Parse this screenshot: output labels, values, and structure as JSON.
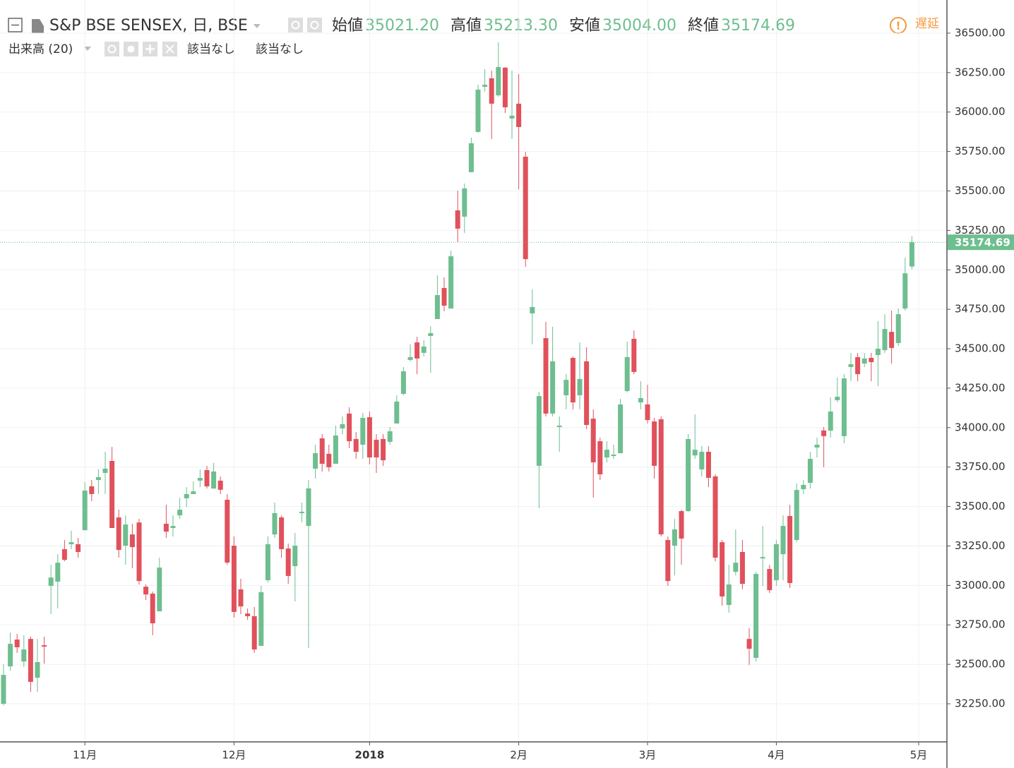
{
  "header": {
    "title": "S&P BSE SENSEX, 日, BSE",
    "ohlc": [
      {
        "label": "始値",
        "value": "35021.20"
      },
      {
        "label": "高値",
        "value": "35213.30"
      },
      {
        "label": "安値",
        "value": "35004.00"
      },
      {
        "label": "終値",
        "value": "35174.69"
      }
    ],
    "volume_label": "出来高 (20)",
    "volume_values": [
      "該当なし",
      "該当なし"
    ],
    "delay": "遅延"
  },
  "chart_data": {
    "type": "candlestick",
    "up_color": "#6ebe8f",
    "down_color": "#e0515b",
    "grid": true,
    "xlim": [
      -0.52,
      139.06
    ],
    "xticks": [
      {
        "value": 12,
        "label": "11月"
      },
      {
        "value": 34,
        "label": "12月"
      },
      {
        "value": 54,
        "label": "2018"
      },
      {
        "value": 76,
        "label": "2月"
      },
      {
        "value": 95,
        "label": "3月"
      },
      {
        "value": 114,
        "label": "4月"
      },
      {
        "value": 135,
        "label": "5月"
      }
    ],
    "ylim": [
      32013,
      36710
    ],
    "yticks": [
      {
        "value": 32250,
        "label": "32250.00"
      },
      {
        "value": 32500,
        "label": "32500.00"
      },
      {
        "value": 32750,
        "label": "32750.00"
      },
      {
        "value": 33000,
        "label": "33000.00"
      },
      {
        "value": 33250,
        "label": "33250.00"
      },
      {
        "value": 33500,
        "label": "33500.00"
      },
      {
        "value": 33750,
        "label": "33750.00"
      },
      {
        "value": 34000,
        "label": "34000.00"
      },
      {
        "value": 34250,
        "label": "34250.00"
      },
      {
        "value": 34500,
        "label": "34500.00"
      },
      {
        "value": 34750,
        "label": "34750.00"
      },
      {
        "value": 35000,
        "label": "35000.00"
      },
      {
        "value": 35250,
        "label": "35250.00"
      },
      {
        "value": 35500,
        "label": "35500.00"
      },
      {
        "value": 35750,
        "label": "35750.00"
      },
      {
        "value": 36000,
        "label": "36000.00"
      },
      {
        "value": 36250,
        "label": "36250.00"
      },
      {
        "value": 36500,
        "label": "36500.00"
      }
    ],
    "open": [
      32250,
      32487,
      32657,
      32518,
      32661,
      32415,
      32621,
      32997,
      33024,
      33230,
      33261,
      33261,
      33350,
      33628,
      33668,
      33713,
      33789,
      33431,
      33252,
      33323,
      33399,
      32992,
      32948,
      32836,
      33391,
      33364,
      33444,
      33552,
      33579,
      33664,
      33731,
      33614,
      33664,
      33543,
      33252,
      32975,
      32822,
      32805,
      32617,
      33033,
      33323,
      33431,
      33234,
      33122,
      33458,
      33377,
      33740,
      33932,
      33834,
      33771,
      33995,
      34089,
      33928,
      33892,
      34066,
      33923,
      33928,
      33910,
      34026,
      34214,
      34429,
      34540,
      34474,
      34581,
      34688,
      34885,
      34755,
      35377,
      35337,
      35619,
      35874,
      36160,
      36214,
      36106,
      36281,
      35959,
      36053,
      35717,
      34724,
      33758,
      34567,
      34089,
      34004,
      34205,
      34442,
      34205,
      34420,
      34057,
      33914,
      33811,
      33820,
      33838,
      34232,
      34563,
      34160,
      34147,
      34039,
      34053,
      33288,
      33252,
      33471,
      33471,
      33824,
      33735,
      33847,
      33691,
      33274,
      32876,
      33086,
      33212,
      32661,
      32541,
      33171,
      33104,
      33033,
      33198,
      33440,
      33288,
      33610,
      33650,
      33874,
      33982,
      33981,
      34174,
      33946,
      34384,
      34447,
      34406,
      34442,
      34460,
      34491,
      34607,
      34536,
      34755,
      35021.2
    ],
    "high": [
      32500,
      32702,
      32693,
      32684,
      32675,
      32661,
      32675,
      33131,
      33198,
      33288,
      33346,
      33301,
      33655,
      33668,
      33735,
      33847,
      33878,
      33480,
      33444,
      33391,
      33422,
      33006,
      32961,
      33176,
      33511,
      33444,
      33556,
      33623,
      33659,
      33735,
      33758,
      33776,
      33690,
      33579,
      33310,
      33042,
      32854,
      32863,
      32997,
      33310,
      33525,
      33444,
      33265,
      33332,
      33525,
      33668,
      33892,
      33959,
      33892,
      34013,
      34071,
      34129,
      33972,
      34093,
      34102,
      33959,
      33959,
      34004,
      34205,
      34384,
      34527,
      34576,
      34554,
      34643,
      34965,
      34952,
      35122,
      35502,
      35547,
      35838,
      36173,
      36272,
      36263,
      36442,
      36285,
      36263,
      36241,
      35748,
      34876,
      34227,
      34670,
      34639,
      34071,
      34339,
      34451,
      34540,
      34509,
      34116,
      33937,
      33914,
      33892,
      34183,
      34545,
      34616,
      34294,
      34272,
      34062,
      34071,
      33310,
      33422,
      33480,
      33959,
      34084,
      33883,
      33883,
      33704,
      33288,
      33131,
      33355,
      33288,
      32729,
      33086,
      33377,
      33131,
      33288,
      33444,
      33511,
      33646,
      33668,
      33847,
      33937,
      34004,
      34192,
      34317,
      34339,
      34473,
      34473,
      34473,
      34473,
      34675,
      34719,
      34742,
      34755,
      35077,
      35213.3
    ],
    "low": [
      32240,
      32460,
      32572,
      32483,
      32326,
      32326,
      32505,
      32818,
      32854,
      33153,
      33230,
      33176,
      33350,
      33534,
      33579,
      33579,
      33364,
      33176,
      33131,
      33109,
      33006,
      32907,
      32684,
      32836,
      33301,
      33310,
      33422,
      33498,
      33579,
      33623,
      33614,
      33614,
      33579,
      33131,
      32796,
      32818,
      32782,
      32572,
      32617,
      33019,
      33301,
      33176,
      33010,
      32899,
      33400,
      32603,
      33677,
      33722,
      33722,
      33771,
      33959,
      33870,
      33803,
      33803,
      33767,
      33713,
      33758,
      33892,
      34026,
      34205,
      34420,
      34339,
      34451,
      34348,
      34688,
      34737,
      34755,
      35176,
      35234,
      35619,
      35869,
      36129,
      35829,
      36097,
      35994,
      35829,
      35511,
      35019,
      34527,
      33489,
      34071,
      34071,
      33847,
      34116,
      34116,
      34116,
      33990,
      33556,
      33668,
      33780,
      33802,
      33838,
      34223,
      34339,
      34116,
      34026,
      33677,
      33310,
      32997,
      33064,
      33131,
      33467,
      33802,
      33690,
      33623,
      33153,
      32872,
      32827,
      33064,
      32975,
      32496,
      32518,
      32997,
      32952,
      32997,
      33033,
      32984,
      33274,
      33579,
      33614,
      33811,
      33749,
      33937,
      34160,
      33901,
      34294,
      34294,
      34384,
      34294,
      34263,
      34473,
      34406,
      34518,
      34742,
      35004
    ],
    "close": [
      32433,
      32630,
      32608,
      32594,
      32389,
      32514,
      32612,
      33050,
      33144,
      33162,
      33274,
      33212,
      33601,
      33579,
      33686,
      33740,
      33364,
      33225,
      33386,
      33243,
      33028,
      32943,
      32760,
      33113,
      33341,
      33377,
      33480,
      33579,
      33596,
      33681,
      33628,
      33722,
      33606,
      33145,
      32832,
      32867,
      32805,
      32594,
      32957,
      33261,
      33458,
      33230,
      33060,
      33252,
      33467,
      33615,
      33838,
      33771,
      33749,
      33950,
      34022,
      33914,
      33847,
      34062,
      33811,
      33811,
      33793,
      33977,
      34165,
      34357,
      34447,
      34438,
      34514,
      34599,
      34840,
      34773,
      35086,
      35261,
      35516,
      35802,
      36142,
      36173,
      36053,
      36285,
      36030,
      35977,
      35905,
      35068,
      34764,
      34200,
      34089,
      34420,
      34013,
      34303,
      34160,
      34308,
      34017,
      33780,
      33704,
      33860,
      33829,
      34147,
      34447,
      34353,
      34187,
      34048,
      33758,
      33324,
      33028,
      33355,
      33297,
      33928,
      33860,
      33847,
      33682,
      33176,
      32930,
      33006,
      33144,
      33010,
      32599,
      33073,
      33180,
      32970,
      33261,
      33377,
      33015,
      33605,
      33637,
      33802,
      33892,
      33946,
      34102,
      34196,
      34312,
      34402,
      34339,
      34438,
      34415,
      34500,
      34625,
      34505,
      34719,
      34978,
      35174.69
    ]
  }
}
